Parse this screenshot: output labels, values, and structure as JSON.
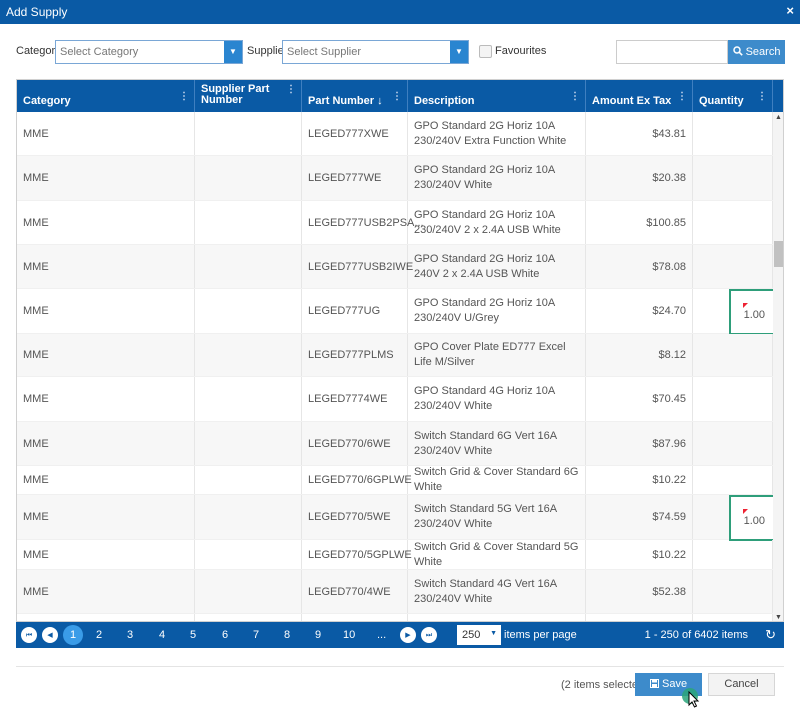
{
  "dialog": {
    "title": "Add Supply",
    "close_glyph": "×"
  },
  "filters": {
    "category_label": "Category",
    "category_placeholder": "Select Category",
    "supplier_label": "Supplier",
    "supplier_placeholder": "Select Supplier",
    "favourites_label": "Favourites",
    "search_value": "",
    "search_button": "Search",
    "search_icon": "magnifier-icon",
    "dropdown_glyph": "▼"
  },
  "grid": {
    "columns": {
      "category": "Category",
      "supplier_part_number": "Supplier Part Number",
      "part_number": "Part Number ↓",
      "description": "Description",
      "amount_ex_tax": "Amount Ex Tax",
      "quantity": "Quantity"
    },
    "column_menu_glyph": "⋮",
    "rows": [
      {
        "category": "MME",
        "supplier_part": "",
        "part": "LEGED777XWE",
        "description": "GPO Standard 2G Horiz 10A 230/240V Extra Function White",
        "amount": "$43.81",
        "quantity": ""
      },
      {
        "category": "MME",
        "supplier_part": "",
        "part": "LEGED777WE",
        "description": "GPO Standard 2G Horiz 10A 230/240V White",
        "amount": "$20.38",
        "quantity": ""
      },
      {
        "category": "MME",
        "supplier_part": "",
        "part": "LEGED777USB2PSA...",
        "description": "GPO Standard 2G Horiz 10A 230/240V 2 x 2.4A USB White",
        "amount": "$100.85",
        "quantity": ""
      },
      {
        "category": "MME",
        "supplier_part": "",
        "part": "LEGED777USB2IWE",
        "description": "GPO Standard 2G Horiz 10A 240V 2 x 2.4A USB White",
        "amount": "$78.08",
        "quantity": ""
      },
      {
        "category": "MME",
        "supplier_part": "",
        "part": "LEGED777UG",
        "description": "GPO Standard 2G Horiz 10A 230/240V U/Grey",
        "amount": "$24.70",
        "quantity": "1.00"
      },
      {
        "category": "MME",
        "supplier_part": "",
        "part": "LEGED777PLMS",
        "description": "GPO Cover Plate ED777 Excel Life M/Silver",
        "amount": "$8.12",
        "quantity": ""
      },
      {
        "category": "MME",
        "supplier_part": "",
        "part": "LEGED7774WE",
        "description": "GPO Standard 4G Horiz 10A 230/240V White",
        "amount": "$70.45",
        "quantity": ""
      },
      {
        "category": "MME",
        "supplier_part": "",
        "part": "LEGED770/6WE",
        "description": "Switch Standard 6G Vert 16A 230/240V White",
        "amount": "$87.96",
        "quantity": ""
      },
      {
        "category": "MME",
        "supplier_part": "",
        "part": "LEGED770/6GPLWE",
        "description": "Switch Grid & Cover Standard 6G White",
        "amount": "$10.22",
        "quantity": ""
      },
      {
        "category": "MME",
        "supplier_part": "",
        "part": "LEGED770/5WE",
        "description": "Switch Standard 5G Vert 16A 230/240V White",
        "amount": "$74.59",
        "quantity": "1.00"
      },
      {
        "category": "MME",
        "supplier_part": "",
        "part": "LEGED770/5GPLWE",
        "description": "Switch Grid & Cover Standard 5G White",
        "amount": "$10.22",
        "quantity": ""
      },
      {
        "category": "MME",
        "supplier_part": "",
        "part": "LEGED770/4WE",
        "description": "Switch Standard 4G Vert 16A 230/240V White",
        "amount": "$52.38",
        "quantity": ""
      },
      {
        "category": "",
        "supplier_part": "",
        "part": "",
        "description": "",
        "amount": "",
        "quantity": ""
      }
    ]
  },
  "pager": {
    "first_glyph": "⏮",
    "prev_glyph": "◀",
    "next_glyph": "▶",
    "last_glyph": "⏭",
    "current_page": "1",
    "pages": [
      "2",
      "3",
      "4",
      "5",
      "6",
      "7",
      "8",
      "9",
      "10",
      "..."
    ],
    "page_size": "250",
    "items_per_page_label": "items per page",
    "count_text": "1 - 250 of 6402 items",
    "refresh_glyph": "↻"
  },
  "footer": {
    "selection_text": "(2 items selected)",
    "save_label": "Save",
    "save_icon": "floppy-disk-icon",
    "cancel_label": "Cancel"
  },
  "colors": {
    "primary": "#0a5aa5",
    "accent_button": "#3d8bcb",
    "quantity_highlight": "#2e9e7a"
  }
}
